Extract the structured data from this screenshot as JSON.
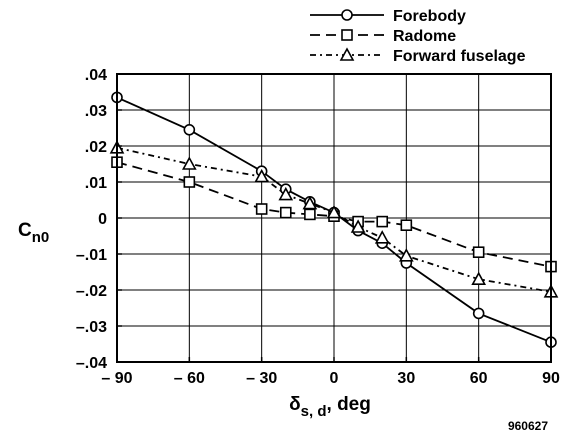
{
  "chart_data": {
    "type": "line",
    "xlabel": "δs, d, deg",
    "xlabel_parts": {
      "symbol": "δ",
      "subscript": "s, d",
      "unit": ", deg"
    },
    "ylabel": "Cn0",
    "ylabel_parts": {
      "main": "C",
      "subscript": "n0"
    },
    "xlim": [
      -90,
      90
    ],
    "ylim": [
      -0.04,
      0.04
    ],
    "x_ticks": [
      -90,
      -60,
      -30,
      0,
      30,
      60,
      90
    ],
    "x_tick_labels": [
      "– 90",
      "– 60",
      "– 30",
      "0",
      "30",
      "60",
      "90"
    ],
    "y_ticks": [
      0.04,
      0.03,
      0.02,
      0.01,
      0,
      -0.01,
      -0.02,
      -0.03,
      -0.04
    ],
    "y_tick_labels": [
      ".04",
      ".03",
      ".02",
      ".01",
      "0",
      "–.01",
      "–.02",
      "–.03",
      "–.04"
    ],
    "grid": true,
    "legend_position": "top-right, outside plot",
    "series": [
      {
        "name": "Forebody",
        "marker": "circle",
        "line_style": "solid",
        "x": [
          -90,
          -60,
          -30,
          -20,
          -10,
          0,
          10,
          20,
          30,
          60,
          90
        ],
        "y": [
          0.0335,
          0.0245,
          0.013,
          0.008,
          0.0045,
          0.0015,
          -0.0035,
          -0.007,
          -0.0125,
          -0.0265,
          -0.0345
        ]
      },
      {
        "name": "Radome",
        "marker": "square",
        "line_style": "dashed",
        "x": [
          -90,
          -60,
          -30,
          -20,
          -10,
          0,
          10,
          20,
          30,
          60,
          90
        ],
        "y": [
          0.0155,
          0.01,
          0.0025,
          0.0015,
          0.001,
          0.0005,
          -0.001,
          -0.001,
          -0.002,
          -0.0095,
          -0.0135
        ]
      },
      {
        "name": "Forward fuselage",
        "marker": "triangle",
        "line_style": "dash-dot",
        "x": [
          -90,
          -60,
          -30,
          -20,
          -10,
          0,
          10,
          20,
          30,
          60,
          90
        ],
        "y": [
          0.0195,
          0.015,
          0.0115,
          0.0065,
          0.004,
          0.0015,
          -0.0025,
          -0.0055,
          -0.0105,
          -0.017,
          -0.0205
        ]
      }
    ],
    "annotation": "960627"
  }
}
